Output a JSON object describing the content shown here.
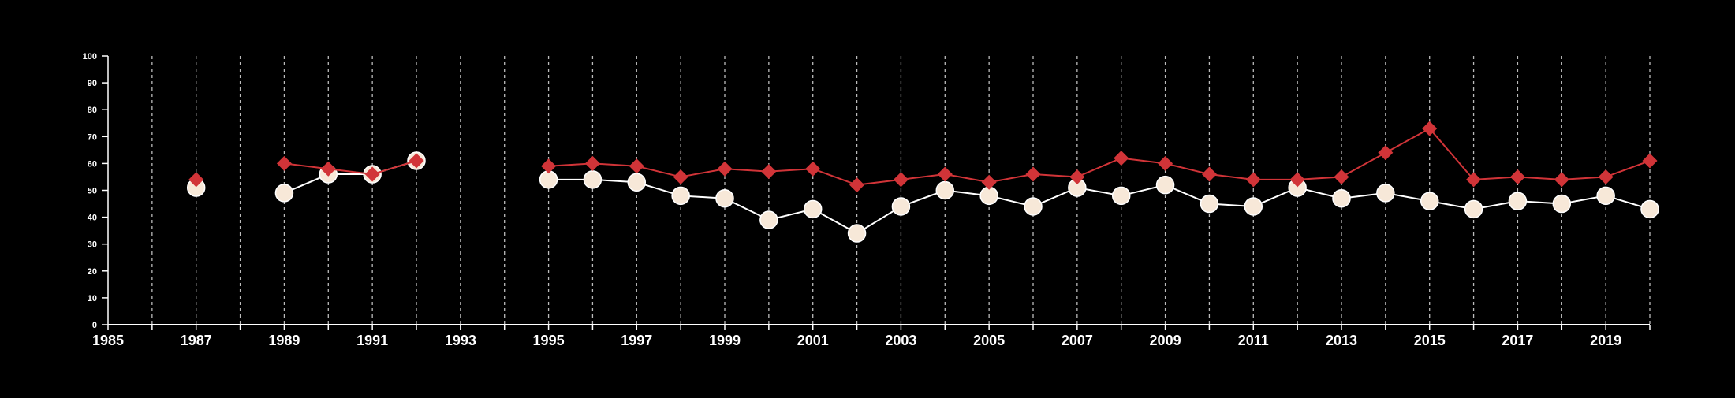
{
  "chart_data": {
    "type": "line",
    "x": [
      1987,
      1988,
      1989,
      1990,
      1991,
      1992,
      1993,
      1994,
      1995,
      1996,
      1997,
      1998,
      1999,
      2000,
      2001,
      2002,
      2003,
      2004,
      2005,
      2006,
      2007,
      2008,
      2009,
      2010,
      2011,
      2012,
      2013,
      2014,
      2015,
      2016,
      2017,
      2018,
      2019,
      2020
    ],
    "series": [
      {
        "color": "#d13438",
        "marker": "diamond",
        "values": [
          54,
          null,
          60,
          58,
          56,
          61,
          null,
          null,
          59,
          60,
          59,
          55,
          58,
          57,
          58,
          52,
          54,
          56,
          53,
          56,
          55,
          62,
          60,
          56,
          54,
          54,
          55,
          64,
          73,
          54,
          55,
          54,
          55,
          61
        ]
      },
      {
        "color": "#f7e8d8",
        "line_color": "#ffffff",
        "marker": "circle",
        "values": [
          51,
          null,
          49,
          56,
          56,
          61,
          null,
          null,
          54,
          54,
          53,
          48,
          47,
          39,
          43,
          34,
          44,
          50,
          48,
          44,
          51,
          48,
          52,
          45,
          44,
          51,
          47,
          49,
          46,
          43,
          46,
          45,
          48,
          43
        ]
      }
    ],
    "xlim": [
      1985,
      2020
    ],
    "ylim": [
      0,
      100
    ],
    "x_ticks": [
      "1985",
      "1987",
      "1989",
      "1991",
      "1993",
      "1995",
      "1997",
      "1999",
      "2001",
      "2003",
      "2005",
      "2007",
      "2009",
      "2011",
      "2013",
      "2015",
      "2017",
      "2019"
    ],
    "y_ticks": [
      "0",
      "10",
      "20",
      "30",
      "40",
      "50",
      "60",
      "70",
      "80",
      "90",
      "100"
    ],
    "grid": "vertical dashed gridlines at every year",
    "legend": "none",
    "title": "",
    "xlabel": "",
    "ylabel": ""
  },
  "colors": {
    "background": "#000000",
    "axis": "#ffffff",
    "grid": "#bbbbbb"
  }
}
